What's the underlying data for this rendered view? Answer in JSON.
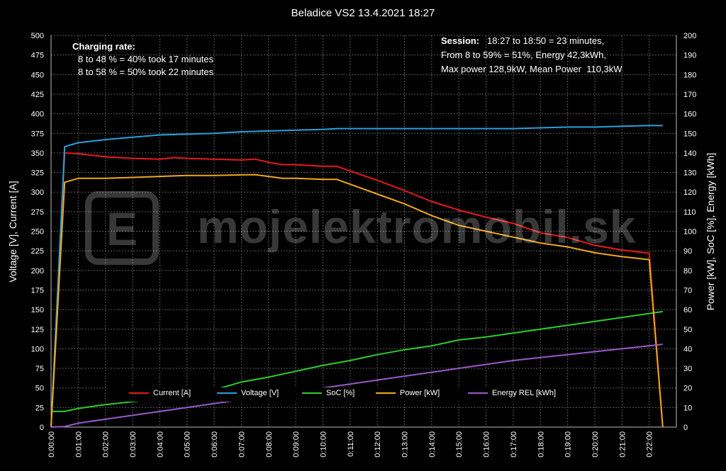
{
  "chart_data": {
    "type": "line",
    "title": "Beladice VS2 13.4.2021 18:27",
    "ylabel_left": "Voltage [V], Current [A]",
    "ylabel_right": "Power [kW], SoC [%], Energy [kWh]",
    "ylim_left": [
      0,
      500
    ],
    "ylim_right": [
      0,
      200
    ],
    "y_ticks_left": [
      "0",
      "25",
      "50",
      "75",
      "100",
      "125",
      "150",
      "175",
      "200",
      "225",
      "250",
      "275",
      "300",
      "325",
      "350",
      "375",
      "400",
      "425",
      "450",
      "475",
      "500"
    ],
    "y_ticks_right": [
      "0",
      "10",
      "20",
      "30",
      "40",
      "50",
      "60",
      "70",
      "80",
      "90",
      "100",
      "110",
      "120",
      "130",
      "140",
      "150",
      "160",
      "170",
      "180",
      "190",
      "200"
    ],
    "x_ticks": [
      "0:00:00",
      "0:01:00",
      "0:02:00",
      "0:03:00",
      "0:04:00",
      "0:05:00",
      "0:06:00",
      "0:07:00",
      "0:08:00",
      "0:09:00",
      "0:10:00",
      "0:11:00",
      "0:12:00",
      "0:13:00",
      "0:14:00",
      "0:15:00",
      "0:16:00",
      "0:17:00",
      "0:18:00",
      "0:19:00",
      "0:20:00",
      "0:21:00",
      "0:22:00"
    ],
    "grid": true,
    "legend_position": "bottom",
    "series": [
      {
        "name": "Current [A]",
        "color": "#e81a1a",
        "axis": "left",
        "x": [
          0,
          0.5,
          1,
          2,
          3,
          4,
          4.5,
          5,
          6,
          7,
          7.5,
          8,
          8.5,
          9,
          10,
          10.5,
          11,
          12,
          13,
          14,
          15,
          16,
          17,
          18,
          19,
          20,
          21,
          22.0,
          22.5
        ],
        "y": [
          0,
          350,
          349,
          345,
          343,
          342,
          344,
          343,
          342,
          341,
          342,
          338,
          335,
          335,
          333,
          333,
          327,
          315,
          302,
          288,
          277,
          268,
          260,
          248,
          242,
          232,
          226,
          222,
          0
        ]
      },
      {
        "name": "Voltage [V]",
        "color": "#29a0dc",
        "axis": "left",
        "x": [
          0,
          0.5,
          1,
          2,
          3,
          4,
          5,
          6,
          7,
          8,
          9,
          10,
          10.5,
          11,
          12,
          13,
          14,
          15,
          16,
          17,
          18,
          19,
          20,
          21,
          22.0,
          22.5
        ],
        "y": [
          0,
          358,
          363,
          367,
          370,
          373,
          374,
          375,
          377,
          378,
          379,
          380,
          381,
          381,
          381,
          381,
          381,
          381,
          381,
          381,
          382,
          383,
          383,
          384,
          385,
          385
        ]
      },
      {
        "name": "SoC [%]",
        "color": "#2ecc2e",
        "axis": "right",
        "x": [
          0,
          0.5,
          1,
          2,
          3,
          4,
          5,
          6,
          7,
          8,
          9,
          10,
          11,
          12,
          13,
          14,
          15,
          16,
          17,
          18,
          19,
          20,
          21,
          22,
          22.5
        ],
        "y": [
          8,
          8,
          9.5,
          11.5,
          13,
          14.5,
          16.5,
          19,
          23,
          25.5,
          28.5,
          31.5,
          34,
          37,
          39.5,
          41.5,
          44.5,
          46,
          48,
          50,
          52,
          54,
          56,
          58,
          59
        ]
      },
      {
        "name": "Power [kW]",
        "color": "#f0a81e",
        "axis": "right",
        "x": [
          0,
          0.5,
          1,
          2,
          3,
          4,
          5,
          6,
          7,
          7.5,
          8,
          8.5,
          9,
          10,
          10.5,
          11,
          12,
          13,
          14,
          15,
          16,
          17,
          18,
          19,
          20,
          21,
          22.0,
          22.5
        ],
        "y": [
          0,
          125,
          127,
          127,
          127.5,
          128,
          128.5,
          128.5,
          128.8,
          128.9,
          128,
          127,
          127,
          126.5,
          126.5,
          124,
          119,
          114,
          108,
          103,
          100,
          97,
          94,
          92,
          89,
          87,
          85.5,
          0
        ]
      },
      {
        "name": "Energy REL [kWh]",
        "color": "#9b59c9",
        "axis": "right",
        "x": [
          0,
          0.5,
          1,
          2,
          3,
          4,
          5,
          6,
          7,
          8,
          9,
          10,
          11,
          12,
          13,
          14,
          15,
          16,
          17,
          18,
          19,
          20,
          21,
          22,
          22.5
        ],
        "y": [
          0,
          0.3,
          2,
          4,
          6,
          8,
          10,
          12,
          14,
          16,
          18,
          20,
          22,
          24,
          26,
          28,
          30,
          32,
          34,
          35.5,
          37,
          38.5,
          40,
          41.5,
          42.3
        ]
      }
    ]
  },
  "annotations": {
    "charging_title": "Charging rate:",
    "charging_line1": "8 to 48 % = 40% took 17 minutes",
    "charging_line2": "8 to 58 % = 50% took 22 minutes",
    "session_label": "Session:",
    "session_line1": "18:27 to 18:50 = 23 minutes,",
    "session_line2": "From 8 to 59% = 51%, Energy 42,3kWh,",
    "session_line3": "Max power 128,9kW, Mean Power  110,3kW"
  },
  "watermark": {
    "logo_letter": "E",
    "text": "mojelektromobil.sk"
  }
}
